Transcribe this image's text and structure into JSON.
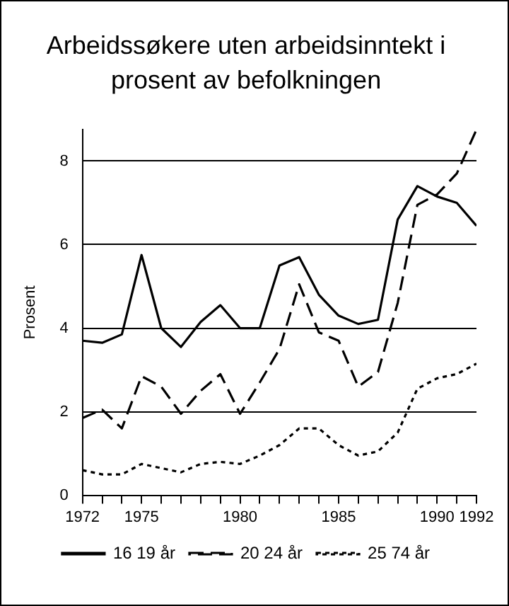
{
  "chart_data": {
    "type": "line",
    "title": "Arbeidssøkere uten arbeidsinntekt i prosent av befolkningen",
    "ylabel": "Prosent",
    "x": [
      1972,
      1973,
      1974,
      1975,
      1976,
      1977,
      1978,
      1979,
      1980,
      1981,
      1982,
      1983,
      1984,
      1985,
      1986,
      1987,
      1988,
      1989,
      1990,
      1991,
      1992
    ],
    "series": [
      {
        "name": "16 19 år",
        "color": "#000000",
        "line_style": "solid",
        "values": [
          3.7,
          3.65,
          3.85,
          5.75,
          4.0,
          3.55,
          4.15,
          4.55,
          4.0,
          4.0,
          5.5,
          5.7,
          4.8,
          4.3,
          4.1,
          4.2,
          6.6,
          7.4,
          7.15,
          7.0,
          6.45
        ]
      },
      {
        "name": "20 24 år",
        "color": "#000000",
        "line_style": "dashed",
        "values": [
          1.85,
          2.05,
          1.6,
          2.85,
          2.6,
          1.95,
          2.5,
          2.9,
          1.95,
          2.7,
          3.5,
          5.05,
          3.9,
          3.7,
          2.6,
          2.95,
          4.6,
          6.95,
          7.2,
          7.7,
          8.75
        ]
      },
      {
        "name": "25 74 år",
        "color": "#000000",
        "line_style": "dotted",
        "values": [
          0.6,
          0.5,
          0.5,
          0.75,
          0.65,
          0.55,
          0.75,
          0.8,
          0.75,
          0.95,
          1.2,
          1.6,
          1.6,
          1.2,
          0.95,
          1.05,
          1.5,
          2.55,
          2.8,
          2.9,
          3.15
        ]
      }
    ],
    "xlim": [
      1972,
      1992
    ],
    "xticks": [
      1972,
      {
        "value": 1973,
        "label": null
      },
      {
        "value": 1974,
        "label": null
      },
      1975,
      {
        "value": 1976,
        "label": null
      },
      {
        "value": 1977,
        "label": null
      },
      {
        "value": 1978,
        "label": null
      },
      {
        "value": 1979,
        "label": null
      },
      1980,
      {
        "value": 1981,
        "label": null
      },
      {
        "value": 1982,
        "label": null
      },
      {
        "value": 1983,
        "label": null
      },
      {
        "value": 1984,
        "label": null
      },
      1985,
      {
        "value": 1986,
        "label": null
      },
      {
        "value": 1987,
        "label": null
      },
      {
        "value": 1988,
        "label": null
      },
      {
        "value": 1989,
        "label": null
      },
      1990,
      {
        "value": 1991,
        "label": null
      },
      1992
    ],
    "ylim": [
      0,
      8.75
    ],
    "yticks": [
      0,
      2,
      4,
      6,
      8
    ],
    "grid": "y",
    "legend": "bottom",
    "marker": "none"
  }
}
